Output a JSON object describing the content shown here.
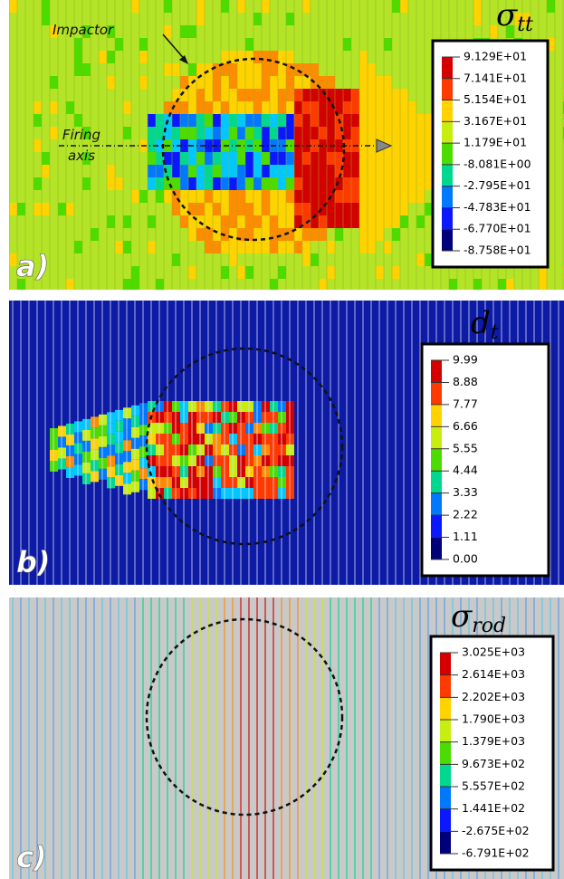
{
  "panels": [
    {
      "label": "a)",
      "symbol": "σ",
      "subscript": "tt",
      "annotations": [
        "Impactor",
        "Firing",
        "axis"
      ],
      "legend": [
        "9.129E+01",
        "7.141E+01",
        "5.154E+01",
        "3.167E+01",
        "1.179E+01",
        "-8.081E+00",
        "-2.795E+01",
        "-4.783E+01",
        "-6.770E+01",
        "-8.758E+01"
      ]
    },
    {
      "label": "b)",
      "symbol": "d",
      "subscript": "t",
      "annotations": [],
      "legend": [
        "9.99",
        "8.88",
        "7.77",
        "6.66",
        "5.55",
        "4.44",
        "3.33",
        "2.22",
        "1.11",
        "0.00"
      ]
    },
    {
      "label": "c)",
      "symbol": "σ",
      "subscript": "rod",
      "annotations": [],
      "legend": [
        "3.025E+03",
        "2.614E+03",
        "2.202E+03",
        "1.790E+03",
        "1.379E+03",
        "9.673E+02",
        "5.557E+02",
        "1.441E+02",
        "-2.675E+02",
        "-6.791E+02"
      ]
    }
  ]
}
